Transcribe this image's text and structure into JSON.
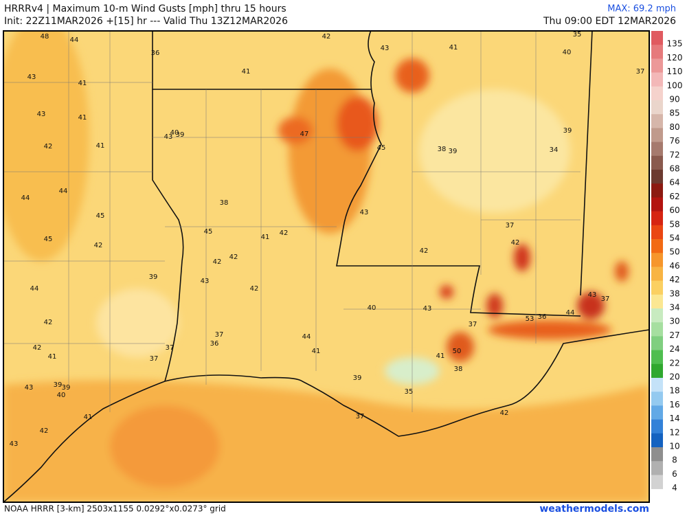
{
  "header": {
    "title": "HRRRv4 | Maximum 10-m Wind Gusts [mph] thru 15 hours",
    "init": "Init: 22Z11MAR2026 +[15] hr --- Valid Thu 13Z12MAR2026",
    "max": "MAX: 69.2 mph",
    "valid": "Thu 09:00 EDT 12MAR2026"
  },
  "footer": {
    "grid": "NOAA HRRR [3-km] 2503x1155 0.0292°x0.0273° grid",
    "site": "weathermodels.com"
  },
  "colorbar": {
    "labels": [
      135,
      120,
      110,
      100,
      90,
      85,
      80,
      76,
      72,
      68,
      64,
      62,
      60,
      58,
      54,
      50,
      46,
      42,
      38,
      34,
      30,
      27,
      24,
      22,
      20,
      18,
      16,
      14,
      12,
      10,
      8,
      6,
      4
    ],
    "colors": [
      "#e05a60",
      "#e67a7c",
      "#ec9898",
      "#f3b8b8",
      "#f5d2cc",
      "#ead5cb",
      "#d6b6aa",
      "#c09a8c",
      "#a67a6e",
      "#8a5a4e",
      "#6c3a30",
      "#8c1a12",
      "#b31410",
      "#d62412",
      "#ea4612",
      "#f26a14",
      "#f6962c",
      "#f8b443",
      "#fbd062",
      "#fbe792",
      "#c8ebc0",
      "#a6dfa0",
      "#80cf80",
      "#4fbe50",
      "#2fa82f",
      "#c4e2f8",
      "#94caf0",
      "#62a9e6",
      "#3281d8",
      "#1462c0",
      "#8e8e8e",
      "#b0b0b0",
      "#d2d2d2"
    ]
  },
  "map": {
    "labels": [
      "48",
      "44",
      "36",
      "42",
      "43",
      "41",
      "35",
      "40",
      "37",
      "43",
      "41",
      "41",
      "43",
      "41",
      "47",
      "40",
      "43",
      "39",
      "39",
      "41",
      "42",
      "45",
      "38",
      "39",
      "34",
      "44",
      "44",
      "38",
      "45",
      "43",
      "37",
      "45",
      "41",
      "42",
      "45",
      "42",
      "42",
      "42",
      "42",
      "42",
      "39",
      "43",
      "42",
      "44",
      "43",
      "37",
      "43",
      "40",
      "44",
      "53",
      "36",
      "42",
      "37",
      "37",
      "44",
      "36",
      "42",
      "37",
      "41",
      "41",
      "50",
      "41",
      "37",
      "38",
      "39",
      "39",
      "43",
      "39",
      "40",
      "35",
      "37",
      "41",
      "42",
      "42",
      "43"
    ]
  }
}
